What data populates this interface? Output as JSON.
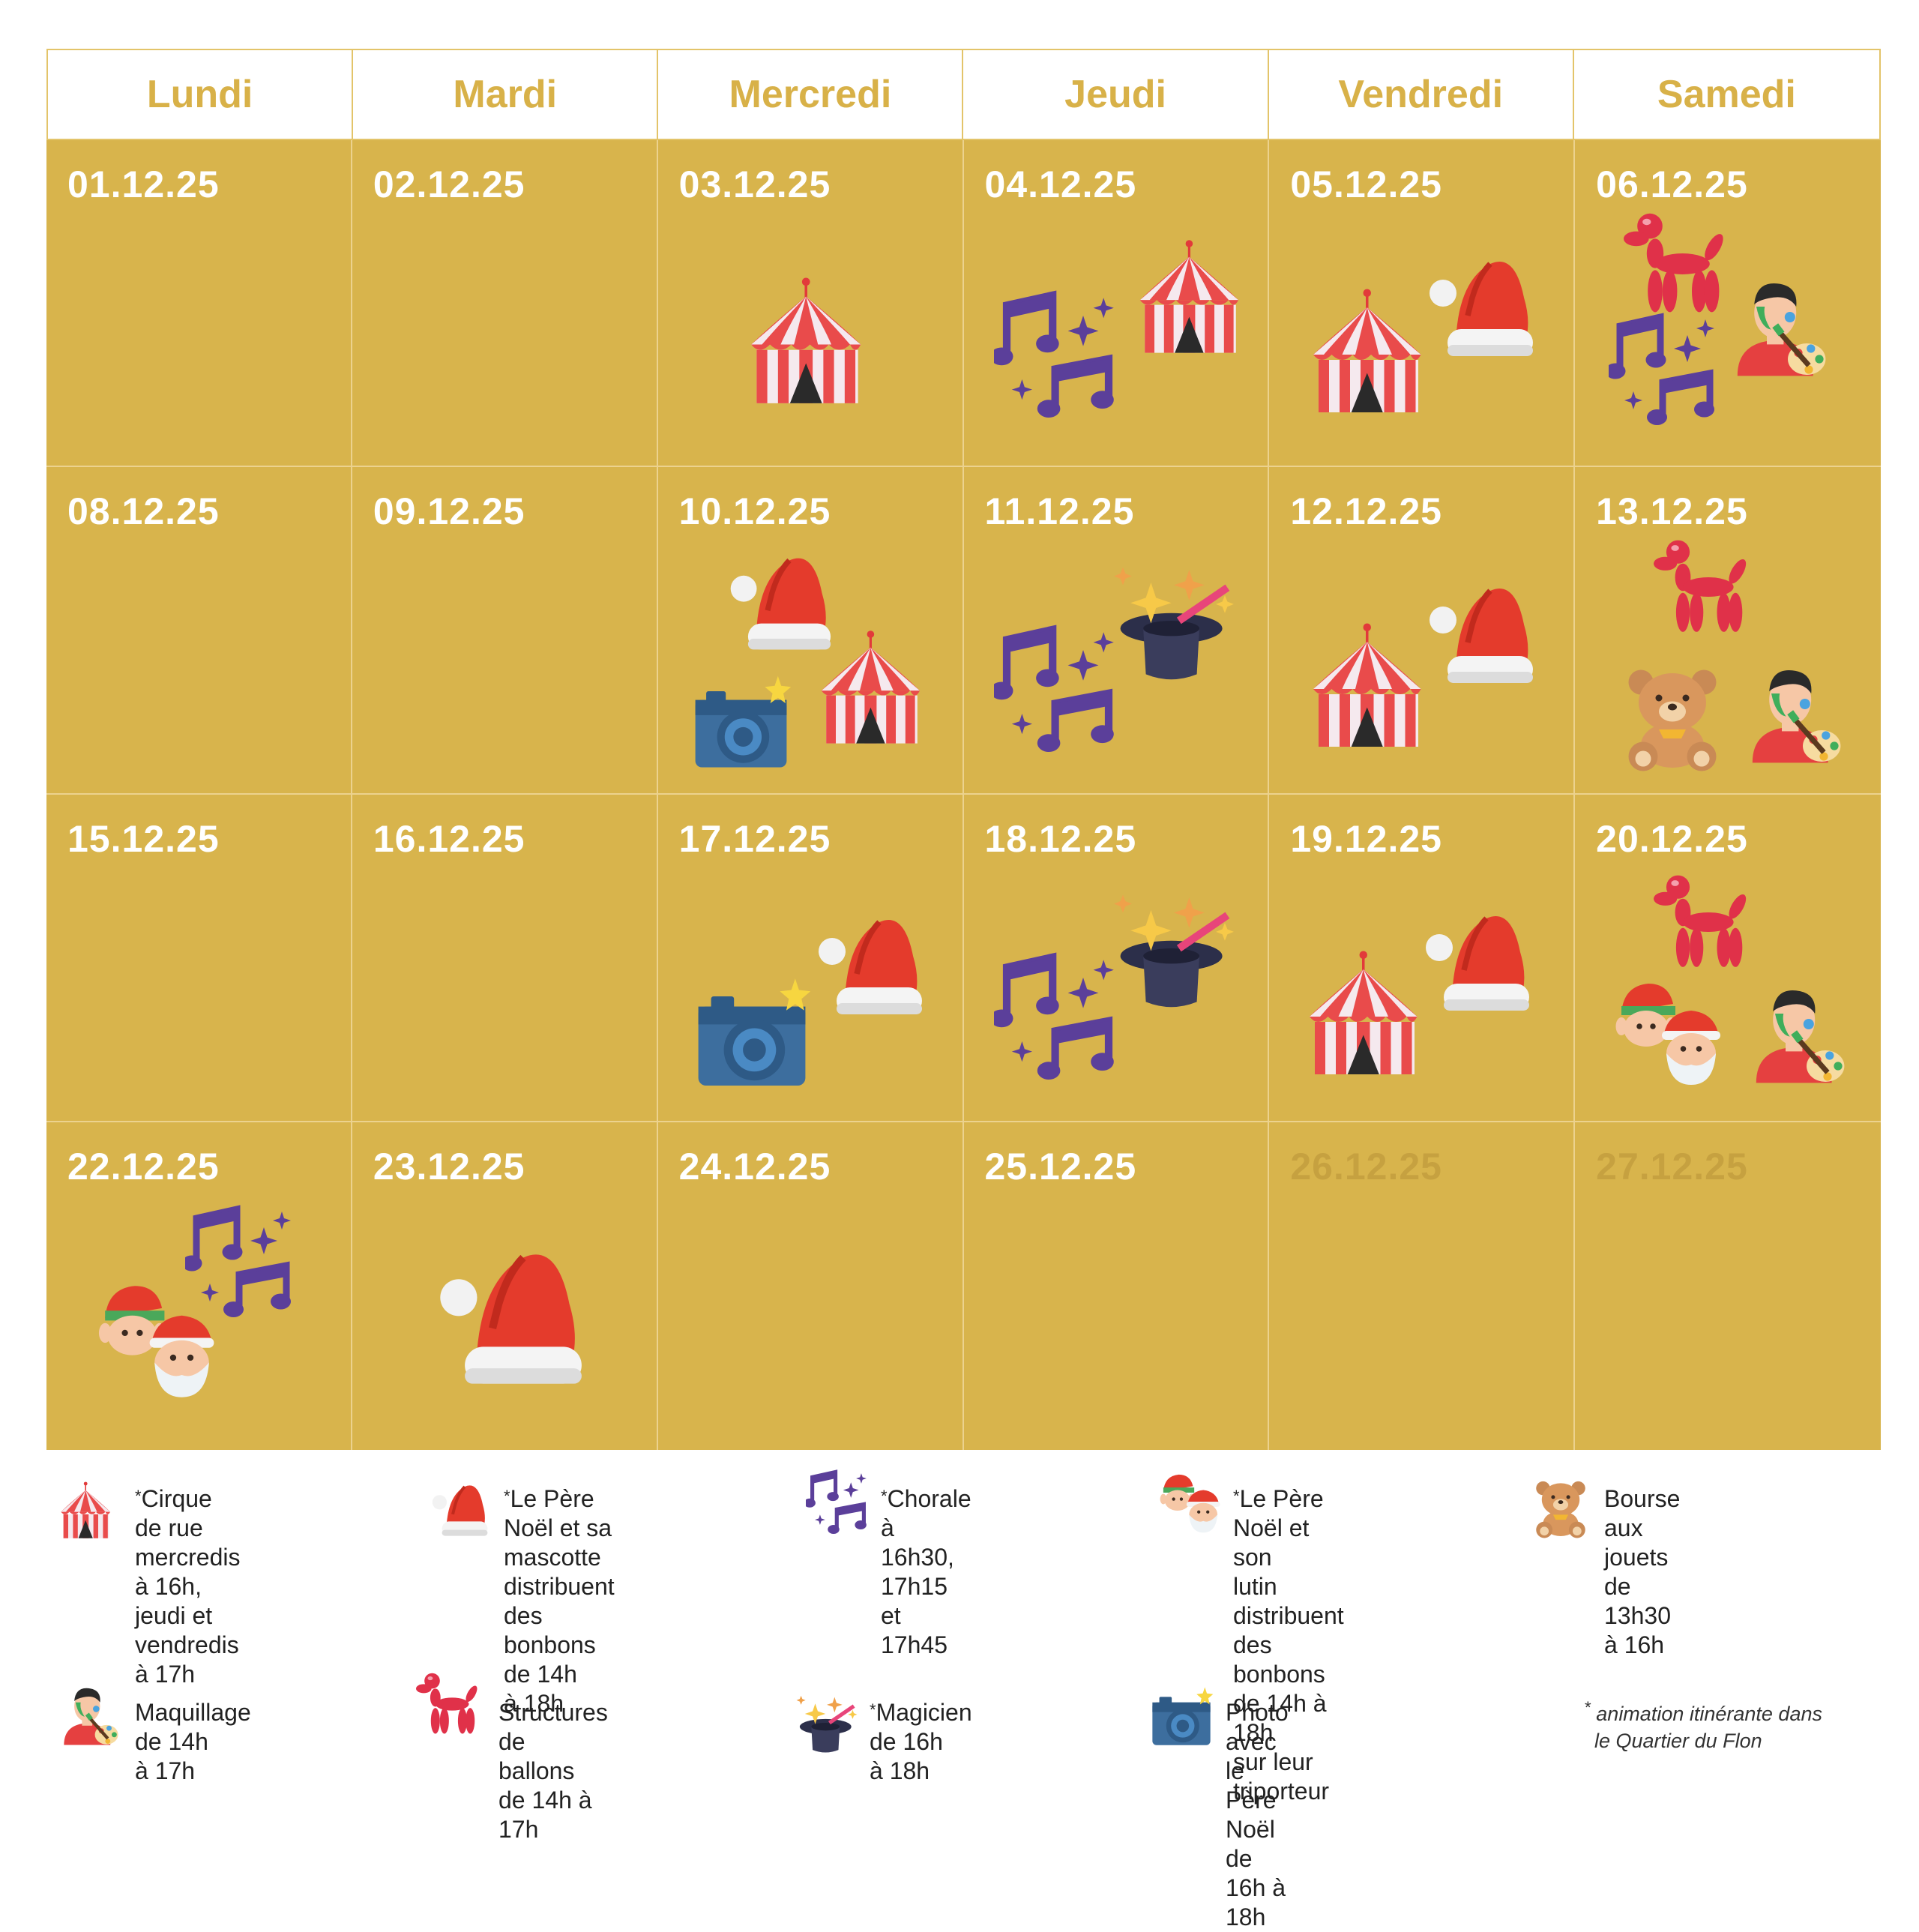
{
  "days": [
    "Lundi",
    "Mardi",
    "Mercredi",
    "Jeudi",
    "Vendredi",
    "Samedi"
  ],
  "weeks": [
    [
      {
        "date": "01.12.25",
        "faded": false,
        "icons": []
      },
      {
        "date": "02.12.25",
        "faded": false,
        "icons": []
      },
      {
        "date": "03.12.25",
        "faded": false,
        "icons": [
          "circus-tent-icon"
        ]
      },
      {
        "date": "04.12.25",
        "faded": false,
        "icons": [
          "circus-tent-icon",
          "music-notes-icon"
        ]
      },
      {
        "date": "05.12.25",
        "faded": false,
        "icons": [
          "circus-tent-icon",
          "santa-hat-icon"
        ]
      },
      {
        "date": "06.12.25",
        "faded": false,
        "icons": [
          "balloon-dog-icon",
          "face-painting-icon",
          "music-notes-icon"
        ]
      }
    ],
    [
      {
        "date": "08.12.25",
        "faded": false,
        "icons": []
      },
      {
        "date": "09.12.25",
        "faded": false,
        "icons": []
      },
      {
        "date": "10.12.25",
        "faded": false,
        "icons": [
          "santa-hat-icon",
          "camera-icon",
          "circus-tent-icon"
        ]
      },
      {
        "date": "11.12.25",
        "faded": false,
        "icons": [
          "magic-hat-icon",
          "music-notes-icon"
        ]
      },
      {
        "date": "12.12.25",
        "faded": false,
        "icons": [
          "circus-tent-icon",
          "santa-hat-icon"
        ]
      },
      {
        "date": "13.12.25",
        "faded": false,
        "icons": [
          "balloon-dog-icon",
          "teddy-bear-icon",
          "face-painting-icon"
        ]
      }
    ],
    [
      {
        "date": "15.12.25",
        "faded": false,
        "icons": []
      },
      {
        "date": "16.12.25",
        "faded": false,
        "icons": []
      },
      {
        "date": "17.12.25",
        "faded": false,
        "icons": [
          "camera-icon",
          "santa-hat-icon"
        ]
      },
      {
        "date": "18.12.25",
        "faded": false,
        "icons": [
          "magic-hat-icon",
          "music-notes-icon"
        ]
      },
      {
        "date": "19.12.25",
        "faded": false,
        "icons": [
          "circus-tent-icon",
          "santa-hat-icon"
        ]
      },
      {
        "date": "20.12.25",
        "faded": false,
        "icons": [
          "balloon-dog-icon",
          "santa-and-elf-icon",
          "face-painting-icon"
        ]
      }
    ],
    [
      {
        "date": "22.12.25",
        "faded": false,
        "icons": [
          "music-notes-icon",
          "santa-and-elf-icon"
        ]
      },
      {
        "date": "23.12.25",
        "faded": false,
        "icons": [
          "santa-hat-icon"
        ]
      },
      {
        "date": "24.12.25",
        "faded": false,
        "icons": []
      },
      {
        "date": "25.12.25",
        "faded": false,
        "icons": []
      },
      {
        "date": "26.12.25",
        "faded": true,
        "icons": []
      },
      {
        "date": "27.12.25",
        "faded": true,
        "icons": []
      }
    ]
  ],
  "legend": [
    {
      "icon": "circus-tent-icon",
      "asterisk": "*",
      "lines": [
        "Cirque de rue",
        "mercredis à 16h,",
        "jeudi et vendredis",
        "à 17h"
      ]
    },
    {
      "icon": "santa-hat-icon",
      "asterisk": "*",
      "lines": [
        "Le Père Noël et sa",
        "mascotte distribuent",
        "des bonbons de 14h",
        "à 18h"
      ]
    },
    {
      "icon": "music-notes-icon",
      "asterisk": "*",
      "lines": [
        "Chorale à 16h30,",
        "17h15 et 17h45"
      ]
    },
    {
      "icon": "santa-and-elf-icon",
      "asterisk": "*",
      "lines": [
        "Le Père Noël et son",
        "lutin distribuent des",
        "bonbons de 14h à 18h",
        "sur leur triporteur"
      ]
    },
    {
      "icon": "teddy-bear-icon",
      "asterisk": "",
      "lines": [
        "Bourse aux jouets de",
        "13h30 à 16h"
      ]
    },
    {
      "icon": "face-painting-icon",
      "asterisk": "",
      "lines": [
        "Maquillage de 14h",
        "à 17h"
      ]
    },
    {
      "icon": "balloon-dog-icon",
      "asterisk": "",
      "lines": [
        "Structures de ballons",
        "de 14h à 17h"
      ]
    },
    {
      "icon": "magic-hat-icon",
      "asterisk": "*",
      "lines": [
        "Magicien de 16h",
        "à 18h"
      ]
    },
    {
      "icon": "camera-icon",
      "asterisk": "",
      "lines": [
        "Photo avec le Père",
        "Noël de 16h à 18h"
      ]
    }
  ],
  "footnote": {
    "asterisk": "*",
    "lines": [
      "animation itinérante dans",
      "le Quartier du Flon"
    ]
  },
  "colors": {
    "gold": "#d8b44c",
    "header_text": "#d8b148",
    "date_text": "#ffffff",
    "faded_date": "#c6a140"
  }
}
